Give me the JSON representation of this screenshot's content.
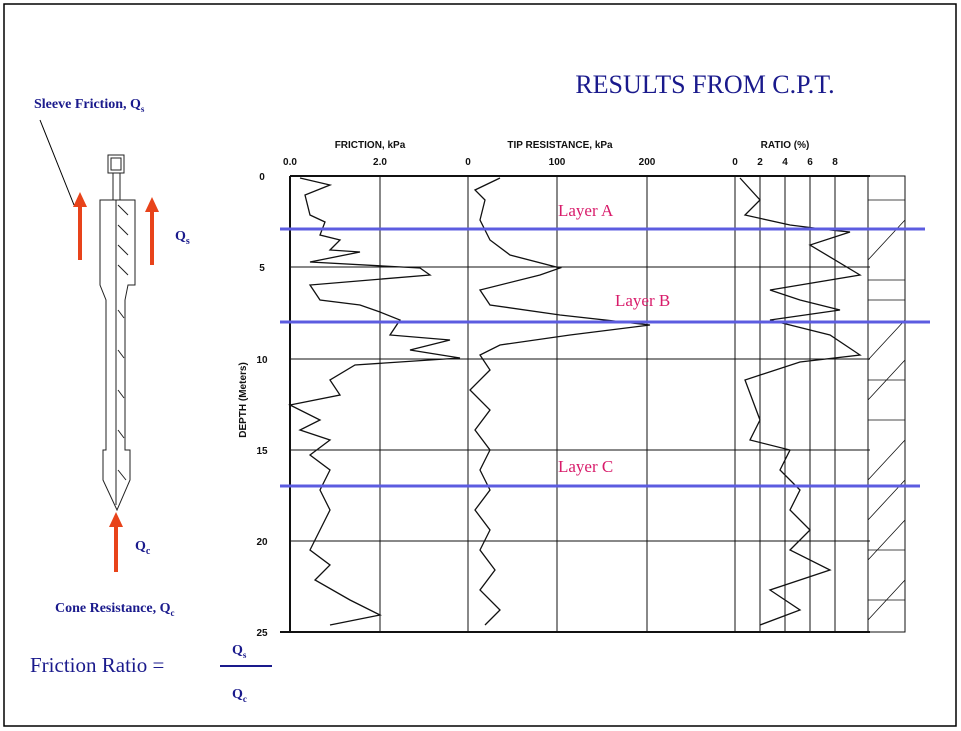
{
  "title": "RESULTS FROM C.P.T.",
  "probe": {
    "sleeve_label": "Sleeve Friction, Q",
    "sleeve_sub": "s",
    "qs": "Q",
    "qs_sub": "s",
    "qc": "Q",
    "qc_sub": "c",
    "cone_label": "Cone Resistance, Q",
    "cone_sub": "c"
  },
  "formula": {
    "lhs": "Friction Ratio =",
    "num": "Q",
    "num_sub": "s",
    "den": "Q",
    "den_sub": "c"
  },
  "log": {
    "panels": [
      {
        "title": "FRICTION, kPa",
        "ticks": [
          "0.0",
          "2.0"
        ]
      },
      {
        "title": "TIP RESISTANCE, kPa",
        "ticks": [
          "0",
          "100",
          "200"
        ]
      },
      {
        "title": "RATIO (%)",
        "ticks": [
          "0",
          "2",
          "4",
          "6",
          "8"
        ]
      }
    ],
    "depth_label": "DEPTH (Meters)",
    "depth_ticks": [
      "0",
      "5",
      "10",
      "15",
      "20",
      "25"
    ],
    "layers": [
      "Layer A",
      "Layer B",
      "Layer C"
    ]
  }
}
